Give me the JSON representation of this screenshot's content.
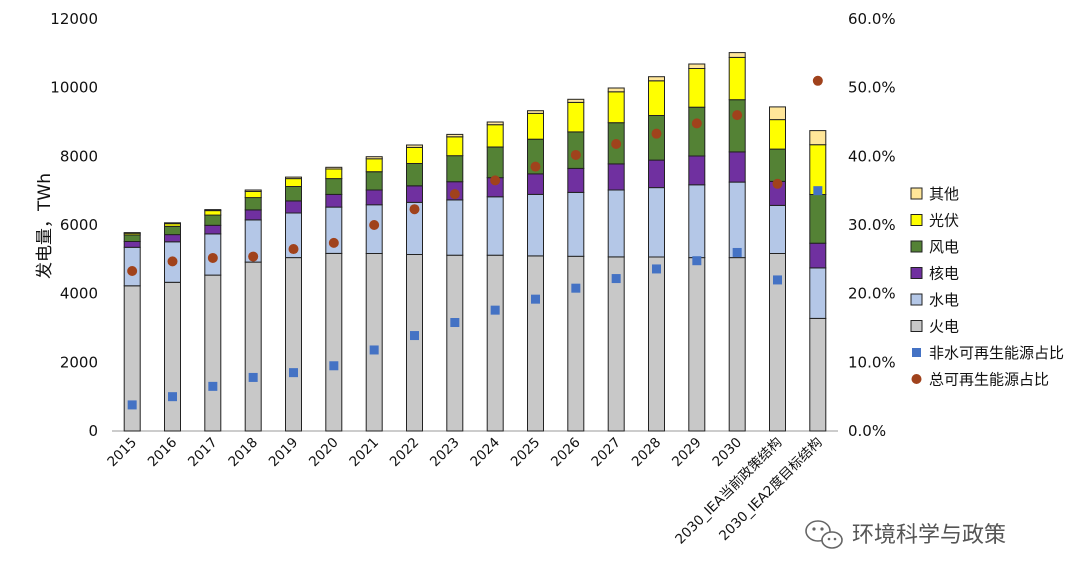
{
  "chart_data": {
    "type": "bar",
    "stacked": true,
    "categories": [
      "2015",
      "2016",
      "2017",
      "2018",
      "2019",
      "2020",
      "2021",
      "2022",
      "2023",
      "2024",
      "2025",
      "2026",
      "2027",
      "2028",
      "2029",
      "2030",
      "2030_IEA当前政策结构",
      "2030_IEA2度目标结构"
    ],
    "ylabel": "发电量，TWh",
    "ylim": [
      0,
      12000
    ],
    "yticks": [
      "0",
      "2000",
      "4000",
      "6000",
      "8000",
      "10000",
      "12000"
    ],
    "y2lim": [
      0,
      60
    ],
    "y2ticks": [
      "0.0%",
      "10.0%",
      "20.0%",
      "30.0%",
      "40.0%",
      "50.0%",
      "60.0%"
    ],
    "legend_position": "right",
    "series": [
      {
        "name": "火电",
        "color": "#c8c8c8",
        "values": [
          4230,
          4330,
          4540,
          4920,
          5050,
          5170,
          5170,
          5140,
          5120,
          5120,
          5100,
          5090,
          5070,
          5070,
          5050,
          5050,
          5170,
          3280
        ]
      },
      {
        "name": "水电",
        "color": "#b4c7e7",
        "values": [
          1120,
          1180,
          1200,
          1230,
          1300,
          1350,
          1420,
          1520,
          1610,
          1700,
          1790,
          1860,
          1950,
          2020,
          2120,
          2200,
          1400,
          1470
        ]
      },
      {
        "name": "核电",
        "color": "#7030a0",
        "values": [
          170,
          210,
          250,
          290,
          350,
          370,
          430,
          480,
          530,
          560,
          600,
          700,
          760,
          800,
          840,
          880,
          700,
          720
        ]
      },
      {
        "name": "风电",
        "color": "#548235",
        "values": [
          190,
          240,
          300,
          360,
          420,
          460,
          530,
          650,
          760,
          890,
          1010,
          1060,
          1200,
          1300,
          1420,
          1520,
          940,
          1420
        ]
      },
      {
        "name": "光伏",
        "color": "#ffff00",
        "values": [
          50,
          80,
          130,
          180,
          230,
          280,
          380,
          470,
          550,
          650,
          750,
          860,
          900,
          1010,
          1130,
          1230,
          860,
          1450
        ]
      },
      {
        "name": "其他",
        "color": "#ffe699",
        "values": [
          20,
          25,
          30,
          40,
          45,
          50,
          60,
          70,
          70,
          80,
          80,
          90,
          110,
          120,
          130,
          140,
          370,
          410
        ]
      }
    ],
    "ratio_series": [
      {
        "name": "非水可再生能源占比",
        "color": "#4472c4",
        "marker": "square",
        "axis": "right",
        "values": [
          3.8,
          5.0,
          6.5,
          7.8,
          8.5,
          9.5,
          11.8,
          13.9,
          15.8,
          17.6,
          19.2,
          20.8,
          22.2,
          23.6,
          24.8,
          26.0,
          22.0,
          35.0
        ]
      },
      {
        "name": "总可再生能源占比",
        "color": "#a0421c",
        "marker": "circle",
        "axis": "right",
        "values": [
          23.3,
          24.7,
          25.2,
          25.4,
          26.5,
          27.4,
          30.0,
          32.3,
          34.5,
          36.5,
          38.5,
          40.2,
          41.8,
          43.3,
          44.8,
          46.0,
          36.0,
          51.0
        ]
      }
    ],
    "legend": [
      "其他",
      "光伏",
      "风电",
      "核电",
      "水电",
      "火电",
      "非水可再生能源占比",
      "总可再生能源占比"
    ]
  },
  "watermark": {
    "text": "环境科学与政策",
    "icon": "wechat-icon"
  }
}
